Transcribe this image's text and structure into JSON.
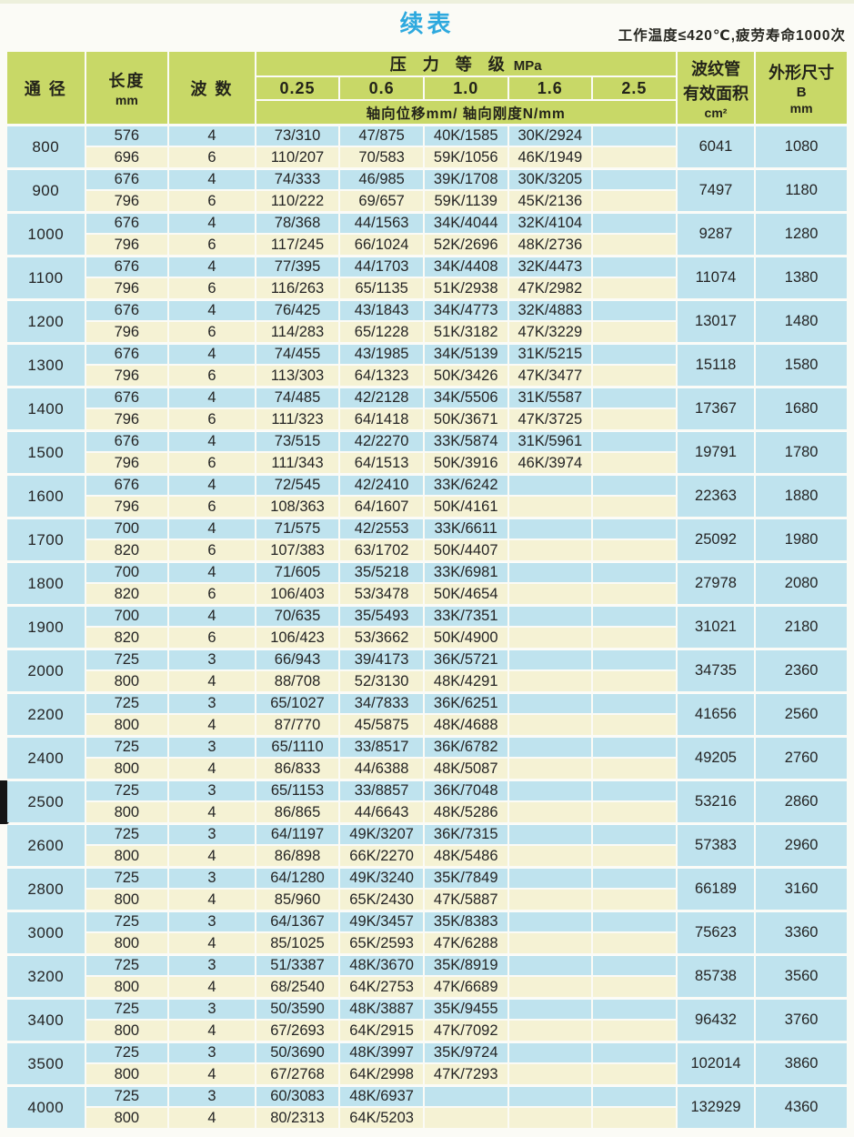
{
  "page": {
    "title": "续表",
    "note": "工作温度≤420℃,疲劳寿命1000次"
  },
  "table": {
    "headers": {
      "diameter": "通 径",
      "length_label": "长度",
      "length_unit": "mm",
      "waves": "波 数",
      "pressure_title": "压　力　等　级",
      "pressure_unit": "MPa",
      "pressure_levels": [
        "0.25",
        "0.6",
        "1.0",
        "1.6",
        "2.5"
      ],
      "axial_subheader": "轴向位移mm/ 轴向刚度N/mm",
      "area_line1": "波纹管",
      "area_line2": "有效面积",
      "area_unit": "cm²",
      "dim_line1": "外形尺寸",
      "dim_line2": "B",
      "dim_unit": "mm"
    },
    "groups": [
      {
        "diameter": "800",
        "area": "6041",
        "b": "1080",
        "rows": [
          {
            "length": "576",
            "waves": "4",
            "values": [
              "73/310",
              "47/875",
              "40K/1585",
              "30K/2924",
              ""
            ]
          },
          {
            "length": "696",
            "waves": "6",
            "values": [
              "110/207",
              "70/583",
              "59K/1056",
              "46K/1949",
              ""
            ]
          }
        ]
      },
      {
        "diameter": "900",
        "area": "7497",
        "b": "1180",
        "rows": [
          {
            "length": "676",
            "waves": "4",
            "values": [
              "74/333",
              "46/985",
              "39K/1708",
              "30K/3205",
              ""
            ]
          },
          {
            "length": "796",
            "waves": "6",
            "values": [
              "110/222",
              "69/657",
              "59K/1139",
              "45K/2136",
              ""
            ]
          }
        ]
      },
      {
        "diameter": "1000",
        "area": "9287",
        "b": "1280",
        "rows": [
          {
            "length": "676",
            "waves": "4",
            "values": [
              "78/368",
              "44/1563",
              "34K/4044",
              "32K/4104",
              ""
            ]
          },
          {
            "length": "796",
            "waves": "6",
            "values": [
              "117/245",
              "66/1024",
              "52K/2696",
              "48K/2736",
              ""
            ]
          }
        ]
      },
      {
        "diameter": "1100",
        "area": "11074",
        "b": "1380",
        "rows": [
          {
            "length": "676",
            "waves": "4",
            "values": [
              "77/395",
              "44/1703",
              "34K/4408",
              "32K/4473",
              ""
            ]
          },
          {
            "length": "796",
            "waves": "6",
            "values": [
              "116/263",
              "65/1135",
              "51K/2938",
              "47K/2982",
              ""
            ]
          }
        ]
      },
      {
        "diameter": "1200",
        "area": "13017",
        "b": "1480",
        "rows": [
          {
            "length": "676",
            "waves": "4",
            "values": [
              "76/425",
              "43/1843",
              "34K/4773",
              "32K/4883",
              ""
            ]
          },
          {
            "length": "796",
            "waves": "6",
            "values": [
              "114/283",
              "65/1228",
              "51K/3182",
              "47K/3229",
              ""
            ]
          }
        ]
      },
      {
        "diameter": "1300",
        "area": "15118",
        "b": "1580",
        "rows": [
          {
            "length": "676",
            "waves": "4",
            "values": [
              "74/455",
              "43/1985",
              "34K/5139",
              "31K/5215",
              ""
            ]
          },
          {
            "length": "796",
            "waves": "6",
            "values": [
              "113/303",
              "64/1323",
              "50K/3426",
              "47K/3477",
              ""
            ]
          }
        ]
      },
      {
        "diameter": "1400",
        "area": "17367",
        "b": "1680",
        "rows": [
          {
            "length": "676",
            "waves": "4",
            "values": [
              "74/485",
              "42/2128",
              "34K/5506",
              "31K/5587",
              ""
            ]
          },
          {
            "length": "796",
            "waves": "6",
            "values": [
              "111/323",
              "64/1418",
              "50K/3671",
              "47K/3725",
              ""
            ]
          }
        ]
      },
      {
        "diameter": "1500",
        "area": "19791",
        "b": "1780",
        "rows": [
          {
            "length": "676",
            "waves": "4",
            "values": [
              "73/515",
              "42/2270",
              "33K/5874",
              "31K/5961",
              ""
            ]
          },
          {
            "length": "796",
            "waves": "6",
            "values": [
              "111/343",
              "64/1513",
              "50K/3916",
              "46K/3974",
              ""
            ]
          }
        ]
      },
      {
        "diameter": "1600",
        "area": "22363",
        "b": "1880",
        "rows": [
          {
            "length": "676",
            "waves": "4",
            "values": [
              "72/545",
              "42/2410",
              "33K/6242",
              "",
              ""
            ]
          },
          {
            "length": "796",
            "waves": "6",
            "values": [
              "108/363",
              "64/1607",
              "50K/4161",
              "",
              ""
            ]
          }
        ]
      },
      {
        "diameter": "1700",
        "area": "25092",
        "b": "1980",
        "rows": [
          {
            "length": "700",
            "waves": "4",
            "values": [
              "71/575",
              "42/2553",
              "33K/6611",
              "",
              ""
            ]
          },
          {
            "length": "820",
            "waves": "6",
            "values": [
              "107/383",
              "63/1702",
              "50K/4407",
              "",
              ""
            ]
          }
        ]
      },
      {
        "diameter": "1800",
        "area": "27978",
        "b": "2080",
        "rows": [
          {
            "length": "700",
            "waves": "4",
            "values": [
              "71/605",
              "35/5218",
              "33K/6981",
              "",
              ""
            ]
          },
          {
            "length": "820",
            "waves": "6",
            "values": [
              "106/403",
              "53/3478",
              "50K/4654",
              "",
              ""
            ]
          }
        ]
      },
      {
        "diameter": "1900",
        "area": "31021",
        "b": "2180",
        "rows": [
          {
            "length": "700",
            "waves": "4",
            "values": [
              "70/635",
              "35/5493",
              "33K/7351",
              "",
              ""
            ]
          },
          {
            "length": "820",
            "waves": "6",
            "values": [
              "106/423",
              "53/3662",
              "50K/4900",
              "",
              ""
            ]
          }
        ]
      },
      {
        "diameter": "2000",
        "area": "34735",
        "b": "2360",
        "rows": [
          {
            "length": "725",
            "waves": "3",
            "values": [
              "66/943",
              "39/4173",
              "36K/5721",
              "",
              ""
            ]
          },
          {
            "length": "800",
            "waves": "4",
            "values": [
              "88/708",
              "52/3130",
              "48K/4291",
              "",
              ""
            ]
          }
        ]
      },
      {
        "diameter": "2200",
        "area": "41656",
        "b": "2560",
        "rows": [
          {
            "length": "725",
            "waves": "3",
            "values": [
              "65/1027",
              "34/7833",
              "36K/6251",
              "",
              ""
            ]
          },
          {
            "length": "800",
            "waves": "4",
            "values": [
              "87/770",
              "45/5875",
              "48K/4688",
              "",
              ""
            ]
          }
        ]
      },
      {
        "diameter": "2400",
        "area": "49205",
        "b": "2760",
        "rows": [
          {
            "length": "725",
            "waves": "3",
            "values": [
              "65/1110",
              "33/8517",
              "36K/6782",
              "",
              ""
            ]
          },
          {
            "length": "800",
            "waves": "4",
            "values": [
              "86/833",
              "44/6388",
              "48K/5087",
              "",
              ""
            ]
          }
        ]
      },
      {
        "diameter": "2500",
        "area": "53216",
        "b": "2860",
        "rows": [
          {
            "length": "725",
            "waves": "3",
            "values": [
              "65/1153",
              "33/8857",
              "36K/7048",
              "",
              ""
            ]
          },
          {
            "length": "800",
            "waves": "4",
            "values": [
              "86/865",
              "44/6643",
              "48K/5286",
              "",
              ""
            ]
          }
        ]
      },
      {
        "diameter": "2600",
        "area": "57383",
        "b": "2960",
        "rows": [
          {
            "length": "725",
            "waves": "3",
            "values": [
              "64/1197",
              "49K/3207",
              "36K/7315",
              "",
              ""
            ]
          },
          {
            "length": "800",
            "waves": "4",
            "values": [
              "86/898",
              "66K/2270",
              "48K/5486",
              "",
              ""
            ]
          }
        ]
      },
      {
        "diameter": "2800",
        "area": "66189",
        "b": "3160",
        "rows": [
          {
            "length": "725",
            "waves": "3",
            "values": [
              "64/1280",
              "49K/3240",
              "35K/7849",
              "",
              ""
            ]
          },
          {
            "length": "800",
            "waves": "4",
            "values": [
              "85/960",
              "65K/2430",
              "47K/5887",
              "",
              ""
            ]
          }
        ]
      },
      {
        "diameter": "3000",
        "area": "75623",
        "b": "3360",
        "rows": [
          {
            "length": "725",
            "waves": "3",
            "values": [
              "64/1367",
              "49K/3457",
              "35K/8383",
              "",
              ""
            ]
          },
          {
            "length": "800",
            "waves": "4",
            "values": [
              "85/1025",
              "65K/2593",
              "47K/6288",
              "",
              ""
            ]
          }
        ]
      },
      {
        "diameter": "3200",
        "area": "85738",
        "b": "3560",
        "rows": [
          {
            "length": "725",
            "waves": "3",
            "values": [
              "51/3387",
              "48K/3670",
              "35K/8919",
              "",
              ""
            ]
          },
          {
            "length": "800",
            "waves": "4",
            "values": [
              "68/2540",
              "64K/2753",
              "47K/6689",
              "",
              ""
            ]
          }
        ]
      },
      {
        "diameter": "3400",
        "area": "96432",
        "b": "3760",
        "rows": [
          {
            "length": "725",
            "waves": "3",
            "values": [
              "50/3590",
              "48K/3887",
              "35K/9455",
              "",
              ""
            ]
          },
          {
            "length": "800",
            "waves": "4",
            "values": [
              "67/2693",
              "64K/2915",
              "47K/7092",
              "",
              ""
            ]
          }
        ]
      },
      {
        "diameter": "3500",
        "area": "102014",
        "b": "3860",
        "rows": [
          {
            "length": "725",
            "waves": "3",
            "values": [
              "50/3690",
              "48K/3997",
              "35K/9724",
              "",
              ""
            ]
          },
          {
            "length": "800",
            "waves": "4",
            "values": [
              "67/2768",
              "64K/2998",
              "47K/7293",
              "",
              ""
            ]
          }
        ]
      },
      {
        "diameter": "4000",
        "area": "132929",
        "b": "4360",
        "rows": [
          {
            "length": "725",
            "waves": "3",
            "values": [
              "60/3083",
              "48K/6937",
              "",
              "",
              ""
            ]
          },
          {
            "length": "800",
            "waves": "4",
            "values": [
              "80/2313",
              "64K/5203",
              "",
              "",
              ""
            ]
          }
        ]
      }
    ]
  },
  "colors": {
    "header_green": "#c8d867",
    "row_blue": "#bfe3ee",
    "row_cream": "#f5f2d4",
    "title_cyan": "#2ea9de",
    "separator_white": "#fdfdfa"
  }
}
